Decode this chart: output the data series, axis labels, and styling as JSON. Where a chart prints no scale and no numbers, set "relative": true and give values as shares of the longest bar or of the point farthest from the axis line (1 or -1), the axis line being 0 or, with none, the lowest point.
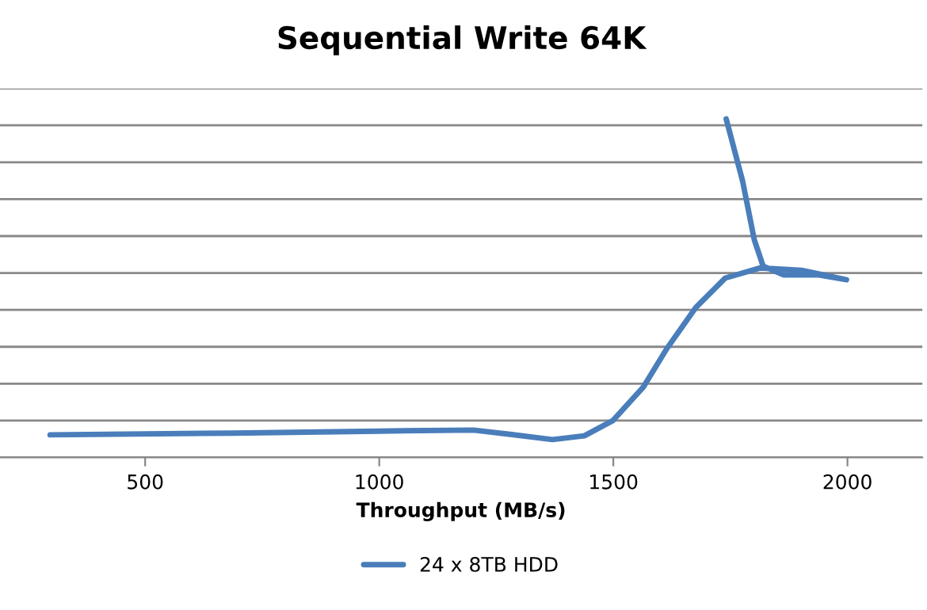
{
  "chart_data": {
    "type": "line",
    "title": "Sequential Write 64K",
    "xlabel": "Throughput (MB/s)",
    "relative": true,
    "xlim": [
      190,
      2160
    ],
    "xticks": [
      500,
      1000,
      1500,
      2000
    ],
    "grid": "y",
    "legend": "bottom",
    "tick_labels": "x",
    "marker": "none",
    "line_style": "solid",
    "series": [
      {
        "name": "24 x 8TB HDD",
        "color": "#4a7ebb",
        "x": [
          297,
          687,
          1000,
          1201,
          1276,
          1370,
          1438,
          1499,
          1564,
          1614,
          1676,
          1739,
          1814,
          1902,
          1998,
          1939,
          1864,
          1820,
          1801,
          1776,
          1741
        ],
        "values": [
          0.067,
          0.072,
          0.078,
          0.081,
          0.069,
          0.053,
          0.064,
          0.109,
          0.208,
          0.321,
          0.443,
          0.53,
          0.56,
          0.553,
          0.525,
          0.539,
          0.539,
          0.565,
          0.643,
          0.817,
          1.0
        ]
      }
    ]
  }
}
